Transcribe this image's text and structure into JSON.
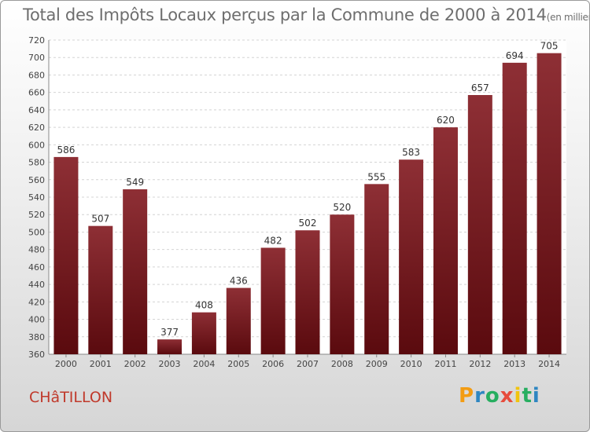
{
  "chart_data": {
    "type": "bar",
    "title": "Total des Impôts Locaux perçus par la Commune de 2000 à 2014",
    "unit": "(en milliers d'€)",
    "categories": [
      "2000",
      "2001",
      "2002",
      "2003",
      "2004",
      "2005",
      "2006",
      "2007",
      "2008",
      "2009",
      "2010",
      "2011",
      "2012",
      "2013",
      "2014"
    ],
    "values": [
      586,
      507,
      549,
      377,
      408,
      436,
      482,
      502,
      520,
      555,
      583,
      620,
      657,
      694,
      705
    ],
    "ylim": [
      360,
      720
    ],
    "yticks": [
      360,
      380,
      400,
      420,
      440,
      460,
      480,
      500,
      520,
      540,
      560,
      580,
      600,
      620,
      640,
      660,
      680,
      700,
      720
    ],
    "grid": true,
    "bar_color": "#7a1c22"
  },
  "commune": "CHâTILLON",
  "logo": {
    "letters": [
      "P",
      "r",
      "o",
      "x",
      "i",
      "t",
      "i"
    ],
    "colors": [
      "#f39c12",
      "#2e86c1",
      "#27ae60",
      "#e74c3c",
      "#f1c40f",
      "#27ae60",
      "#2e86c1"
    ]
  }
}
